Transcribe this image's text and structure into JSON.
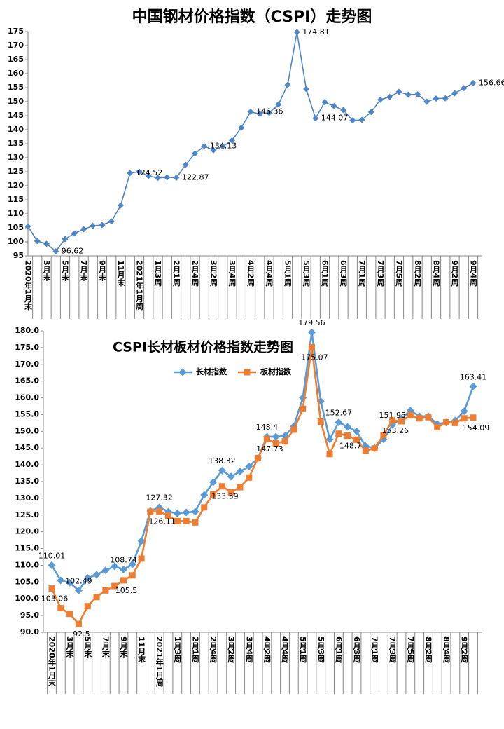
{
  "chart_data": [
    {
      "type": "line",
      "title": "中国钢材价格指数（CSPI）走势图",
      "categories": [
        "2020年1月末",
        null,
        "3月末",
        null,
        "5月末",
        null,
        "7月末",
        null,
        "9月末",
        null,
        "11月末",
        null,
        "2021年1月周",
        null,
        "1月3周",
        null,
        "2月1周",
        null,
        "2月4周",
        null,
        "3月2周",
        null,
        "3月4周",
        null,
        "4月2周",
        null,
        "4月4周",
        null,
        "5月1周",
        null,
        "5月3周",
        null,
        "6月1周",
        null,
        "6月3周",
        null,
        "7月1周",
        null,
        "7月3周",
        null,
        "7月5周",
        null,
        "8月2周",
        null,
        "8月4周",
        null,
        "9月2周",
        null,
        "9月4周"
      ],
      "values": [
        105.5,
        100.3,
        99.3,
        96.62,
        101,
        103,
        104.5,
        105.7,
        106,
        107.3,
        113,
        124.52,
        125,
        123.5,
        122.8,
        123,
        122.87,
        127.5,
        131.5,
        134.13,
        132.7,
        134,
        136.2,
        140.7,
        146.36,
        145.6,
        146,
        149,
        156,
        174.81,
        154.5,
        144.07,
        149.8,
        148.4,
        147,
        143.3,
        143.5,
        146.3,
        150.7,
        151.7,
        153.5,
        152.5,
        152.6,
        150,
        151.1,
        151.2,
        153,
        154.8,
        156.66
      ],
      "value_labels": [
        null,
        null,
        null,
        "96.62",
        null,
        null,
        null,
        null,
        null,
        null,
        null,
        "124.52",
        null,
        null,
        null,
        null,
        "122.87",
        null,
        null,
        "134.13",
        null,
        null,
        null,
        null,
        "146.36",
        null,
        null,
        null,
        null,
        "174.81",
        null,
        "144.07",
        null,
        null,
        null,
        null,
        null,
        null,
        null,
        null,
        null,
        null,
        null,
        null,
        null,
        null,
        null,
        null,
        "156.66"
      ],
      "color": "#4f86c6",
      "marker": "diamond",
      "ylim": [
        95,
        175
      ],
      "yticks": [
        95,
        100,
        105,
        110,
        115,
        120,
        125,
        130,
        135,
        140,
        145,
        150,
        155,
        160,
        165,
        170,
        175
      ]
    },
    {
      "type": "line",
      "title": "CSPI长材板材价格指数走势图",
      "categories": [
        "2020年1月末",
        null,
        "3月末",
        null,
        "5月末",
        null,
        "7月末",
        null,
        "9月末",
        null,
        "11月末",
        null,
        "2021年1月周",
        null,
        "1月3周",
        null,
        "2月1周",
        null,
        "2月4周",
        null,
        "3月2周",
        null,
        "3月4周",
        null,
        "4月2周",
        null,
        "4月4周",
        null,
        "5月1周",
        null,
        "5月3周",
        null,
        "6月1周",
        null,
        "6月3周",
        null,
        "7月1周",
        null,
        "7月3周",
        null,
        "7月5周",
        null,
        "8月2周",
        null,
        "8月4周",
        null,
        "9月2周",
        null
      ],
      "series": [
        {
          "name": "长材指数",
          "color": "#5b9bd5",
          "marker": "diamond",
          "values": [
            110.01,
            105.5,
            104.8,
            102.49,
            106.2,
            107.2,
            108.5,
            109.7,
            108.74,
            110.3,
            117.3,
            126.2,
            127.32,
            126.0,
            125.5,
            125.8,
            126.0,
            131.0,
            134.8,
            138.32,
            136.5,
            138.0,
            139.5,
            142.0,
            148.4,
            148.4,
            148.6,
            151.5,
            160.0,
            179.56,
            159.0,
            147.6,
            152.67,
            151.3,
            150.0,
            145.6,
            145.0,
            147.6,
            151.95,
            153.8,
            156.2,
            154.5,
            154.5,
            152.2,
            152.6,
            153.2,
            156.0,
            163.41
          ],
          "value_labels": [
            "110.01",
            null,
            null,
            "102.49",
            null,
            null,
            null,
            null,
            "108.74",
            null,
            null,
            null,
            "127.32",
            null,
            null,
            null,
            null,
            null,
            null,
            "138.32",
            null,
            null,
            null,
            null,
            "148.4",
            null,
            null,
            null,
            null,
            "179.56",
            null,
            null,
            "152.67",
            null,
            null,
            null,
            null,
            null,
            "151.95",
            null,
            null,
            null,
            null,
            null,
            null,
            null,
            null,
            "163.41"
          ]
        },
        {
          "name": "板材指数",
          "color": "#ed7d31",
          "marker": "square",
          "values": [
            103.06,
            97.2,
            95.5,
            92.5,
            97.8,
            100.5,
            102.5,
            103.8,
            105.5,
            107.0,
            112.0,
            126.0,
            126.11,
            124.8,
            123.2,
            123.2,
            122.8,
            127.3,
            131.2,
            133.59,
            131.8,
            133.3,
            136.2,
            142.0,
            147.73,
            146.4,
            147.0,
            150.5,
            156.7,
            175.07,
            152.9,
            143.2,
            149.3,
            148.7,
            147.5,
            144.2,
            144.9,
            148.9,
            153.26,
            153.0,
            154.8,
            153.9,
            154.2,
            151.2,
            152.7,
            152.5,
            153.9,
            154.09
          ],
          "value_labels": [
            "103.06",
            null,
            null,
            "92.5",
            null,
            null,
            null,
            null,
            "105.5",
            null,
            null,
            null,
            "126.11",
            null,
            null,
            null,
            null,
            null,
            null,
            "133.59",
            null,
            null,
            null,
            null,
            "147.73",
            null,
            null,
            null,
            null,
            "175.07",
            null,
            null,
            null,
            "148.7",
            null,
            null,
            null,
            null,
            "153.26",
            null,
            null,
            null,
            null,
            null,
            null,
            null,
            null,
            "154.09"
          ]
        }
      ],
      "ylim": [
        90,
        180
      ],
      "yticks": [
        {
          "value": 90,
          "label": "90.0"
        },
        {
          "value": 95,
          "label": "95.0"
        },
        {
          "value": 100,
          "label": "100.0"
        },
        {
          "value": 105,
          "label": "105.0"
        },
        {
          "value": 110,
          "label": "110.0"
        },
        {
          "value": 115,
          "label": "115.0"
        },
        {
          "value": 120,
          "label": "120.0"
        },
        {
          "value": 125,
          "label": "125.0"
        },
        {
          "value": 130,
          "label": "130.0"
        },
        {
          "value": 135,
          "label": "135.0"
        },
        {
          "value": 140,
          "label": "140.0"
        },
        {
          "value": 145,
          "label": "145.0"
        },
        {
          "value": 150,
          "label": "150.0"
        },
        {
          "value": 155,
          "label": "155.0"
        },
        {
          "value": 160,
          "label": "160.0"
        },
        {
          "value": 165,
          "label": "165.0"
        },
        {
          "value": 170,
          "label": "170.0"
        },
        {
          "value": 175,
          "label": "175.0"
        },
        {
          "value": 180,
          "label": "180.0"
        }
      ]
    }
  ]
}
